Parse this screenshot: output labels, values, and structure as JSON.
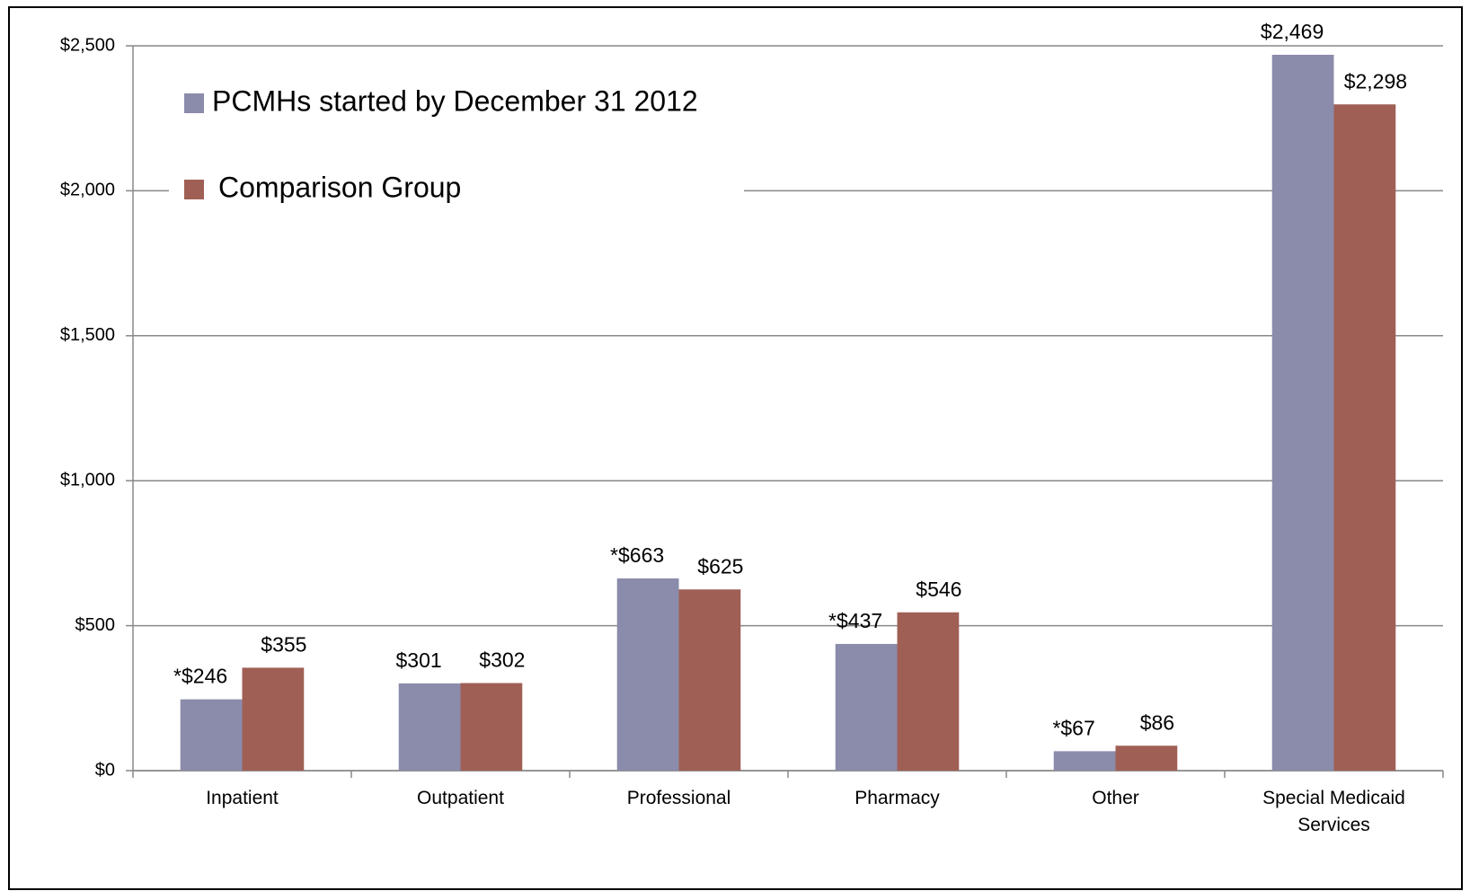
{
  "chart_data": {
    "type": "bar",
    "categories": [
      "Inpatient",
      "Outpatient",
      "Professional",
      "Pharmacy",
      "Other",
      "Special Medicaid Services"
    ],
    "series": [
      {
        "name": "PCMHs started by December 31 2012",
        "color": "#8b8bab",
        "values": [
          246,
          301,
          663,
          437,
          67,
          2469
        ],
        "value_labels": [
          "*$246",
          "$301",
          "*$663",
          "*$437",
          "*$67",
          "$2,469"
        ]
      },
      {
        "name": "Comparison Group",
        "color": "#a05f55",
        "values": [
          355,
          302,
          625,
          546,
          86,
          2298
        ],
        "value_labels": [
          "$355",
          "$302",
          "$625",
          "$546",
          "$86",
          "$2,298"
        ]
      }
    ],
    "ylim": [
      0,
      2500
    ],
    "yticks": [
      {
        "value": 0,
        "label": "$0"
      },
      {
        "value": 500,
        "label": "$500"
      },
      {
        "value": 1000,
        "label": "$1,000"
      },
      {
        "value": 1500,
        "label": "$1,500"
      },
      {
        "value": 2000,
        "label": "$2,000"
      },
      {
        "value": 2500,
        "label": "$2,500"
      }
    ],
    "grid": true,
    "legend": "top-left"
  }
}
